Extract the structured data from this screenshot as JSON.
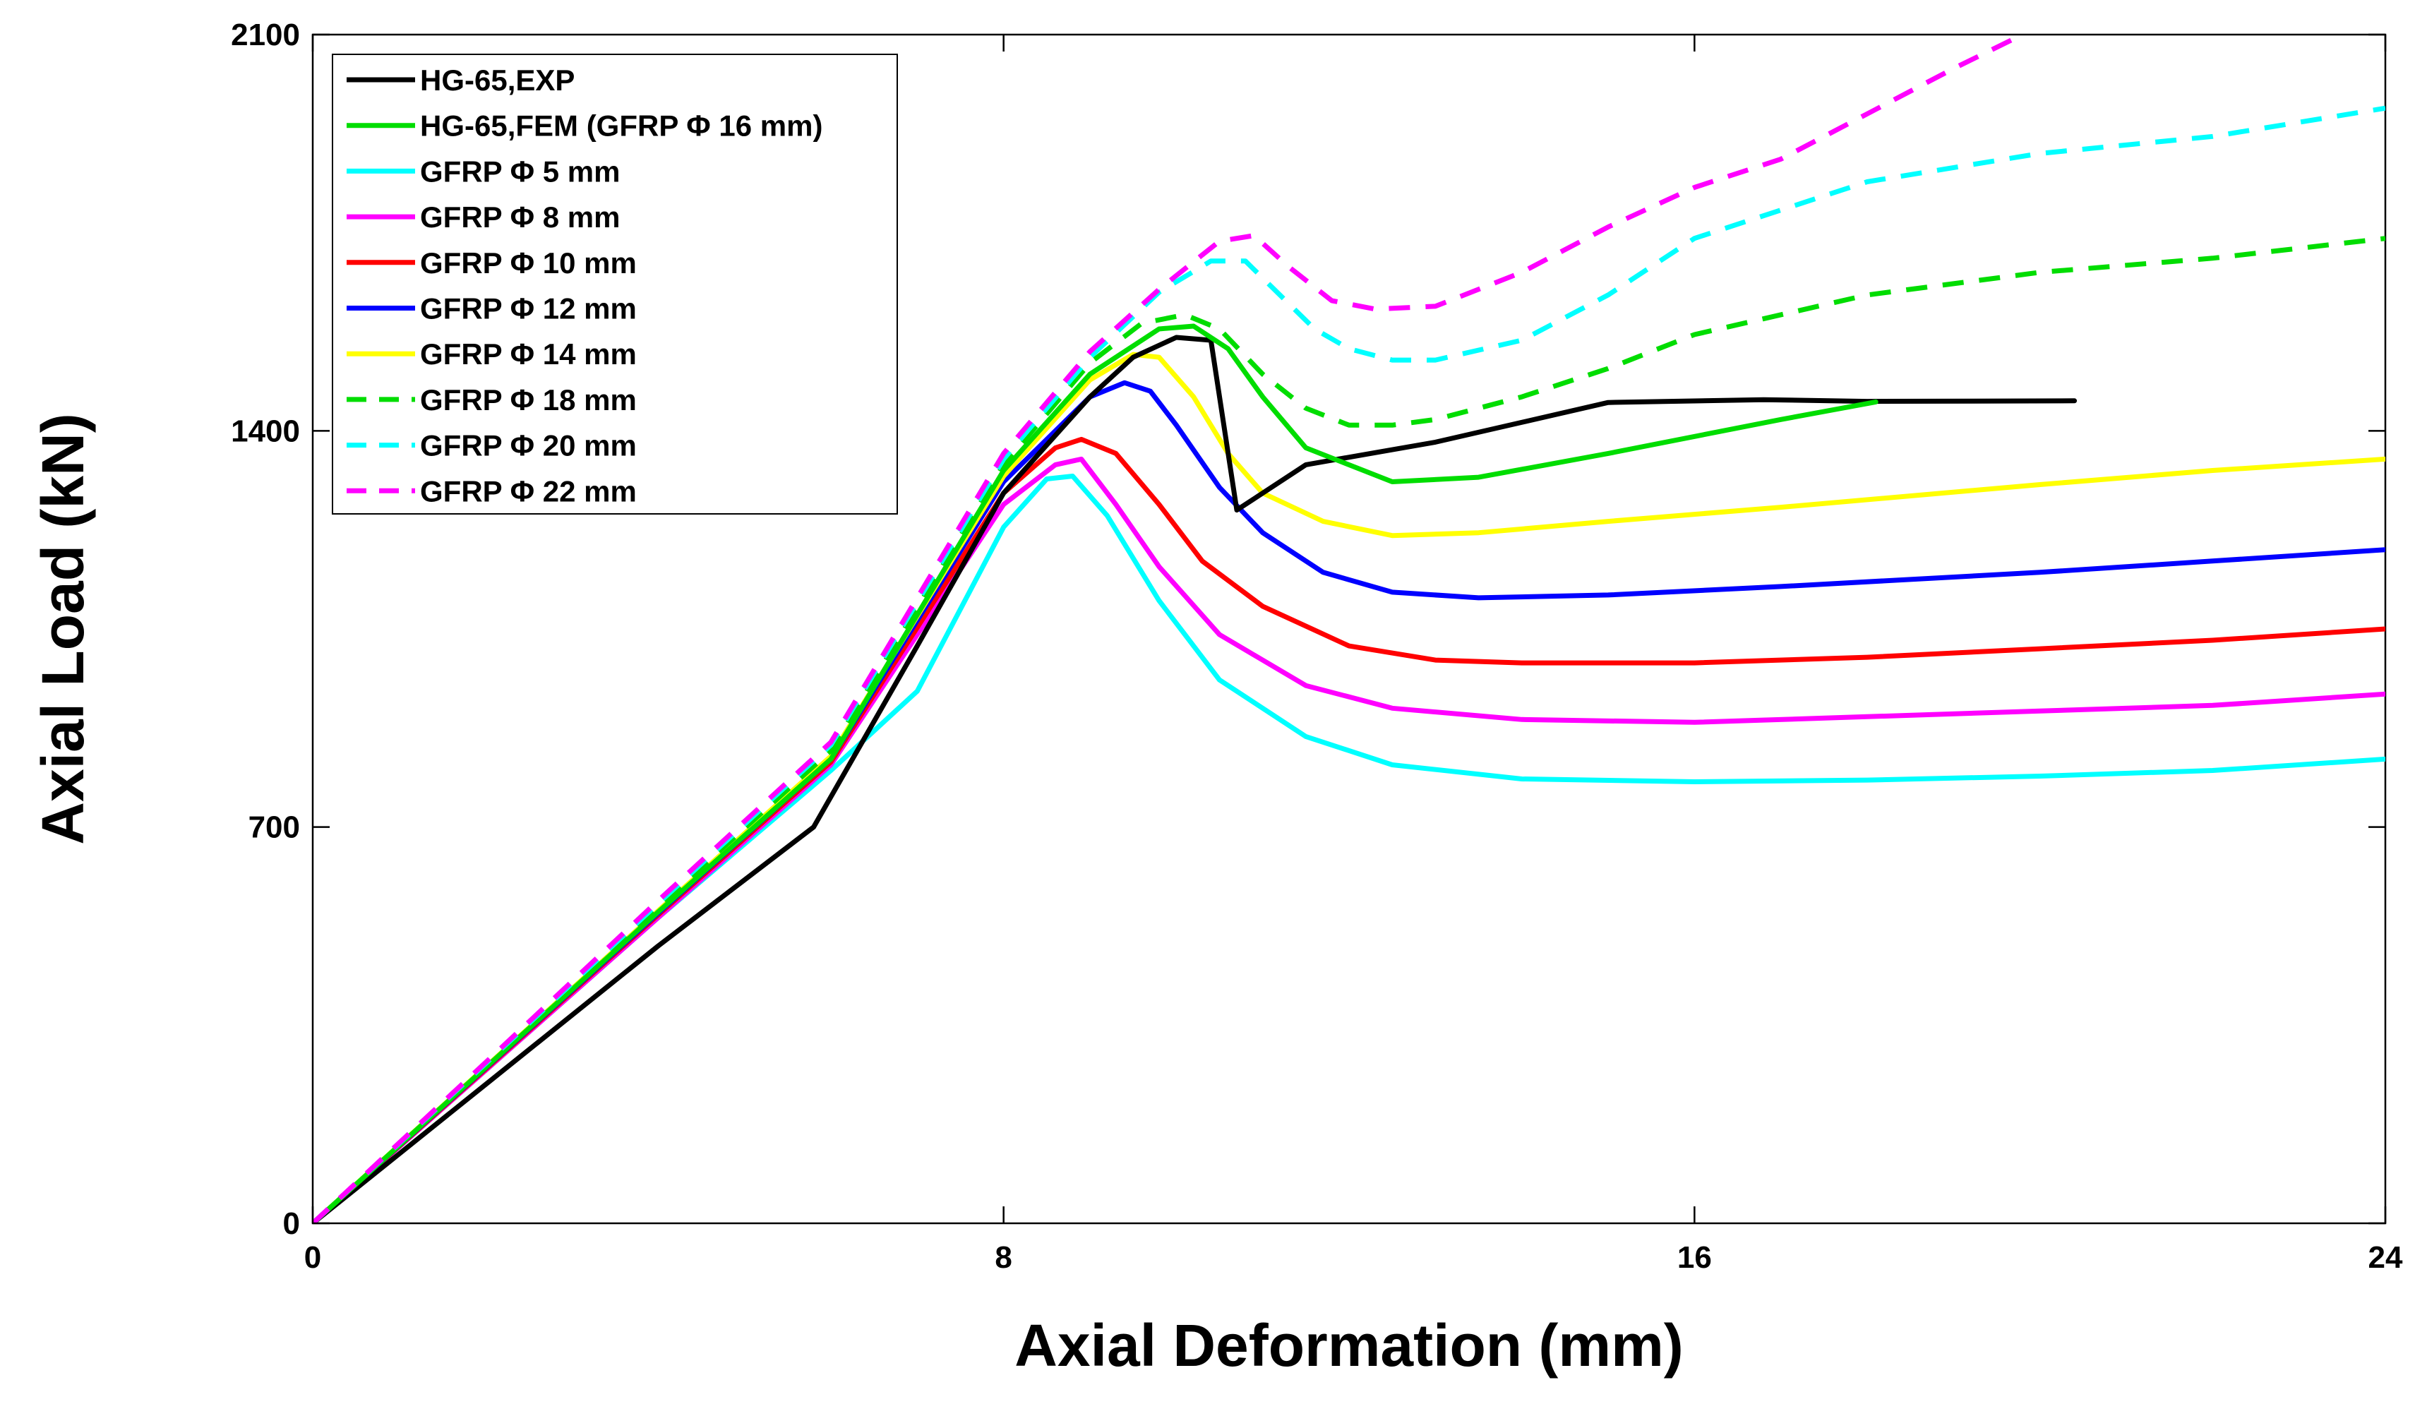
{
  "chart_data": {
    "type": "line",
    "title": "",
    "xlabel": "Axial Deformation (mm)",
    "ylabel": "Axial Load (kN)",
    "xlim": [
      0,
      24
    ],
    "ylim": [
      0,
      2100
    ],
    "xticks": [
      0,
      8,
      16,
      24
    ],
    "yticks": [
      0,
      700,
      1400,
      2100
    ],
    "legend_position": "top-left",
    "series": [
      {
        "name": "HG-65,EXP",
        "color": "#000000",
        "dash": "solid",
        "x": [
          0,
          2,
          4,
          5.8,
          7,
          8,
          9,
          9.5,
          10,
          10.4,
          10.7,
          11.5,
          13,
          15,
          16.8,
          18,
          20.4
        ],
        "y": [
          0,
          245,
          490,
          700,
          1020,
          1290,
          1460,
          1530,
          1565,
          1560,
          1260,
          1340,
          1380,
          1450,
          1455,
          1452,
          1453
        ]
      },
      {
        "name": "HG-65,FEM (GFRP Φ 16 mm)",
        "color": "#00dd00",
        "dash": "solid",
        "x": [
          0,
          2,
          4,
          6,
          8,
          9,
          9.8,
          10.2,
          10.6,
          11,
          11.5,
          12.5,
          13.5,
          15,
          17,
          18.1
        ],
        "y": [
          0,
          275,
          550,
          820,
          1330,
          1500,
          1580,
          1585,
          1545,
          1460,
          1370,
          1310,
          1318,
          1360,
          1420,
          1451
        ]
      },
      {
        "name": "GFRP Φ 5 mm",
        "color": "#00ffff",
        "dash": "solid",
        "x": [
          0,
          2,
          4,
          6,
          7,
          8,
          8.5,
          8.8,
          9.2,
          9.8,
          10.5,
          11.5,
          12.5,
          14,
          16,
          18,
          20,
          22,
          24
        ],
        "y": [
          0,
          270,
          540,
          800,
          940,
          1230,
          1315,
          1320,
          1250,
          1100,
          960,
          860,
          810,
          785,
          780,
          783,
          790,
          800,
          820
        ]
      },
      {
        "name": "GFRP Φ 8 mm",
        "color": "#ff00ff",
        "dash": "solid",
        "x": [
          0,
          2,
          4,
          6,
          8,
          8.6,
          8.9,
          9.3,
          9.8,
          10.5,
          11.5,
          12.5,
          14,
          16,
          18,
          20,
          22,
          24
        ],
        "y": [
          0,
          270,
          540,
          810,
          1270,
          1340,
          1350,
          1270,
          1160,
          1040,
          950,
          910,
          890,
          885,
          895,
          905,
          915,
          935
        ]
      },
      {
        "name": "GFRP Φ 10 mm",
        "color": "#ff0000",
        "dash": "solid",
        "x": [
          0,
          2,
          4,
          6,
          8,
          8.6,
          8.9,
          9.3,
          9.8,
          10.3,
          11,
          12,
          13,
          14,
          16,
          18,
          20,
          22,
          24
        ],
        "y": [
          0,
          272,
          545,
          815,
          1290,
          1370,
          1385,
          1360,
          1270,
          1170,
          1090,
          1020,
          995,
          990,
          990,
          1000,
          1015,
          1030,
          1050
        ]
      },
      {
        "name": "GFRP Φ 12 mm",
        "color": "#0000ff",
        "dash": "solid",
        "x": [
          0,
          2,
          4,
          6,
          8,
          9,
          9.4,
          9.7,
          10,
          10.5,
          11,
          11.7,
          12.5,
          13.5,
          15,
          17,
          20,
          22,
          24
        ],
        "y": [
          0,
          274,
          548,
          820,
          1310,
          1460,
          1485,
          1470,
          1410,
          1300,
          1220,
          1150,
          1115,
          1105,
          1110,
          1125,
          1150,
          1170,
          1190
        ]
      },
      {
        "name": "GFRP Φ 14 mm",
        "color": "#ffff00",
        "dash": "solid",
        "x": [
          0,
          2,
          4,
          6,
          8,
          9,
          9.5,
          9.8,
          10.2,
          10.6,
          11,
          11.7,
          12.5,
          13.5,
          15,
          17,
          20,
          22,
          24
        ],
        "y": [
          0,
          276,
          552,
          825,
          1320,
          1490,
          1535,
          1530,
          1460,
          1360,
          1290,
          1240,
          1215,
          1220,
          1240,
          1265,
          1305,
          1330,
          1350
        ]
      },
      {
        "name": "GFRP Φ 18 mm",
        "color": "#00dd00",
        "dash": "dashed",
        "x": [
          0,
          2,
          4,
          6,
          8,
          9,
          9.6,
          10.1,
          10.5,
          11,
          11.5,
          12,
          12.5,
          13,
          14,
          15,
          16,
          18,
          20,
          22,
          24
        ],
        "y": [
          0,
          280,
          560,
          835,
          1340,
          1520,
          1590,
          1605,
          1580,
          1500,
          1440,
          1410,
          1410,
          1420,
          1460,
          1510,
          1570,
          1640,
          1680,
          1705,
          1740
        ]
      },
      {
        "name": "GFRP Φ 20 mm",
        "color": "#00ffff",
        "dash": "dashed",
        "x": [
          0,
          2,
          4,
          6,
          8,
          9,
          9.8,
          10.4,
          10.8,
          11.2,
          11.6,
          12,
          12.5,
          13,
          14,
          15,
          16,
          18,
          20,
          22,
          24
        ],
        "y": [
          0,
          282,
          565,
          845,
          1350,
          1530,
          1645,
          1700,
          1700,
          1640,
          1580,
          1545,
          1525,
          1525,
          1560,
          1640,
          1740,
          1840,
          1890,
          1920,
          1970
        ]
      },
      {
        "name": "GFRP Φ 22 mm",
        "color": "#ff00ff",
        "dash": "dashed",
        "x": [
          0,
          2,
          4,
          6,
          8,
          9,
          9.8,
          10.5,
          10.9,
          11.3,
          11.8,
          12.3,
          13,
          14,
          15,
          16,
          17,
          18,
          19,
          19.8
        ],
        "y": [
          0,
          284,
          570,
          850,
          1360,
          1540,
          1650,
          1735,
          1745,
          1690,
          1630,
          1615,
          1620,
          1680,
          1760,
          1830,
          1880,
          1960,
          2040,
          2100
        ]
      }
    ]
  }
}
